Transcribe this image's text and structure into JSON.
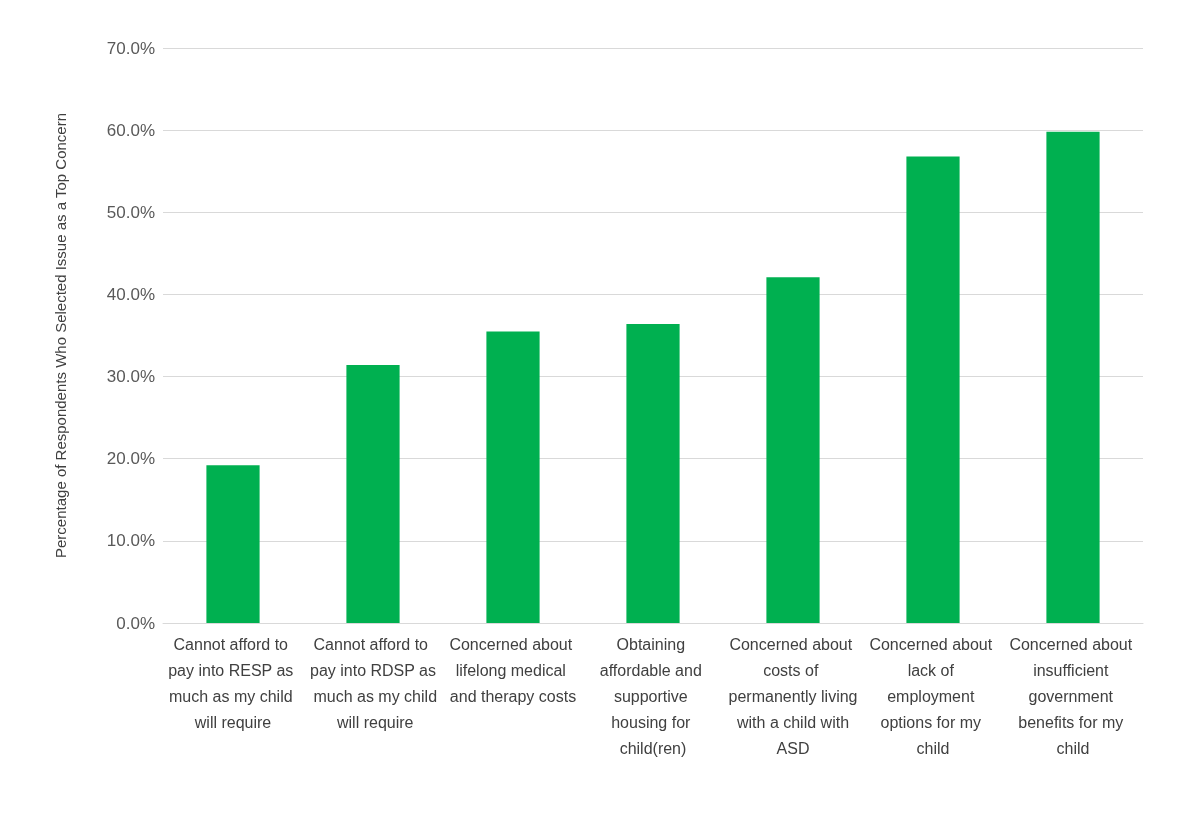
{
  "chart_data": {
    "type": "bar",
    "ylabel": "Percentage of Respondents Who Selected Issue as a Top Concern",
    "categories": [
      "Cannot afford to pay into RESP as much as my child will require",
      "Cannot afford to pay into RDSP as much as my child will require",
      "Concerned about lifelong medical and therapy costs",
      "Obtaining affordable and supportive housing for child(ren)",
      "Concerned about costs of permanently living with a child with ASD",
      "Concerned about lack of employment options for my child",
      "Concerned about insufficient government benefits for my child"
    ],
    "values": [
      19.2,
      31.4,
      35.5,
      36.4,
      42.1,
      56.8,
      59.8
    ],
    "color": "#00b050",
    "ylim": [
      0,
      70
    ],
    "yticks": [
      {
        "value": 0,
        "label": "0.0%"
      },
      {
        "value": 10,
        "label": "10.0%"
      },
      {
        "value": 20,
        "label": "20.0%"
      },
      {
        "value": 30,
        "label": "30.0%"
      },
      {
        "value": 40,
        "label": "40.0%"
      },
      {
        "value": 50,
        "label": "50.0%"
      },
      {
        "value": 60,
        "label": "60.0%"
      },
      {
        "value": 70,
        "label": "70.0%"
      }
    ],
    "grid": "y"
  }
}
